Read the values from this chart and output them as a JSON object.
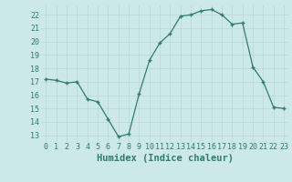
{
  "x": [
    0,
    1,
    2,
    3,
    4,
    5,
    6,
    7,
    8,
    9,
    10,
    11,
    12,
    13,
    14,
    15,
    16,
    17,
    18,
    19,
    20,
    21,
    22,
    23
  ],
  "y": [
    17.2,
    17.1,
    16.9,
    17.0,
    15.7,
    15.5,
    14.2,
    12.9,
    13.1,
    16.1,
    18.6,
    19.9,
    20.6,
    21.9,
    22.0,
    22.3,
    22.4,
    22.0,
    21.3,
    21.4,
    18.1,
    17.0,
    15.1,
    15.0
  ],
  "line_color": "#2e7d6e",
  "marker": "+",
  "marker_size": 3,
  "xlabel": "Humidex (Indice chaleur)",
  "xlim": [
    -0.5,
    23.5
  ],
  "ylim": [
    12.5,
    22.7
  ],
  "yticks": [
    13,
    14,
    15,
    16,
    17,
    18,
    19,
    20,
    21,
    22
  ],
  "xticks": [
    0,
    1,
    2,
    3,
    4,
    5,
    6,
    7,
    8,
    9,
    10,
    11,
    12,
    13,
    14,
    15,
    16,
    17,
    18,
    19,
    20,
    21,
    22,
    23
  ],
  "bg_color": "#cce8e8",
  "grid_color": "#c0d8d8",
  "plot_bg": "#cce8e8",
  "text_color": "#2e7d6e",
  "tick_fontsize": 6.0,
  "xlabel_fontsize": 7.5
}
